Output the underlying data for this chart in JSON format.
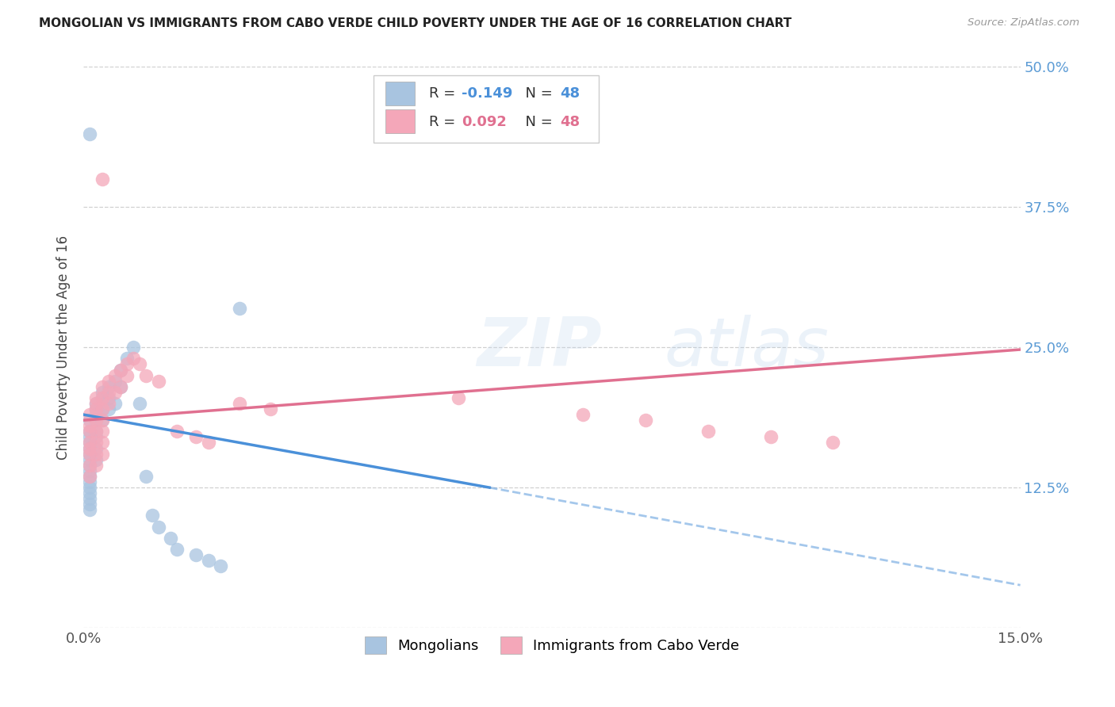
{
  "title": "MONGOLIAN VS IMMIGRANTS FROM CABO VERDE CHILD POVERTY UNDER THE AGE OF 16 CORRELATION CHART",
  "source": "Source: ZipAtlas.com",
  "ylabel": "Child Poverty Under the Age of 16",
  "xlim": [
    0.0,
    0.15
  ],
  "ylim": [
    0.0,
    0.5
  ],
  "xtick_positions": [
    0.0,
    0.05,
    0.1,
    0.15
  ],
  "xticklabels": [
    "0.0%",
    "",
    "",
    "15.0%"
  ],
  "ytick_positions": [
    0.0,
    0.125,
    0.25,
    0.375,
    0.5
  ],
  "yticklabels_right": [
    "",
    "12.5%",
    "25.0%",
    "37.5%",
    "50.0%"
  ],
  "legend_r_mongolian": "-0.149",
  "legend_n_mongolian": "48",
  "legend_r_caboverde": "0.092",
  "legend_n_caboverde": "48",
  "mongolian_color": "#a8c4e0",
  "caboverde_color": "#f4a7b9",
  "mongolian_line_color": "#4a90d9",
  "caboverde_line_color": "#e07090",
  "tick_label_color": "#5b9bd5",
  "grid_color": "#d0d0d0",
  "background_color": "#ffffff",
  "watermark": "ZIPatlas",
  "mon_x": [
    0.001,
    0.001,
    0.001,
    0.001,
    0.001,
    0.001,
    0.001,
    0.001,
    0.001,
    0.001,
    0.001,
    0.001,
    0.001,
    0.001,
    0.001,
    0.001,
    0.002,
    0.002,
    0.002,
    0.002,
    0.002,
    0.002,
    0.002,
    0.002,
    0.003,
    0.003,
    0.003,
    0.003,
    0.004,
    0.004,
    0.004,
    0.005,
    0.005,
    0.006,
    0.006,
    0.007,
    0.008,
    0.009,
    0.01,
    0.011,
    0.012,
    0.014,
    0.015,
    0.018,
    0.02,
    0.022,
    0.025,
    0.001
  ],
  "mon_y": [
    0.185,
    0.175,
    0.17,
    0.165,
    0.16,
    0.155,
    0.15,
    0.145,
    0.14,
    0.135,
    0.13,
    0.125,
    0.12,
    0.115,
    0.11,
    0.105,
    0.2,
    0.195,
    0.19,
    0.185,
    0.175,
    0.17,
    0.16,
    0.15,
    0.21,
    0.205,
    0.195,
    0.185,
    0.215,
    0.205,
    0.195,
    0.22,
    0.2,
    0.23,
    0.215,
    0.24,
    0.25,
    0.2,
    0.135,
    0.1,
    0.09,
    0.08,
    0.07,
    0.065,
    0.06,
    0.055,
    0.285,
    0.44
  ],
  "cv_x": [
    0.001,
    0.001,
    0.001,
    0.001,
    0.001,
    0.001,
    0.001,
    0.001,
    0.002,
    0.002,
    0.002,
    0.002,
    0.002,
    0.002,
    0.002,
    0.002,
    0.003,
    0.003,
    0.003,
    0.003,
    0.003,
    0.003,
    0.003,
    0.004,
    0.004,
    0.004,
    0.005,
    0.005,
    0.006,
    0.006,
    0.007,
    0.007,
    0.008,
    0.009,
    0.01,
    0.012,
    0.015,
    0.018,
    0.02,
    0.025,
    0.03,
    0.06,
    0.08,
    0.09,
    0.1,
    0.11,
    0.12,
    0.003
  ],
  "cv_y": [
    0.19,
    0.18,
    0.175,
    0.165,
    0.16,
    0.155,
    0.145,
    0.135,
    0.205,
    0.2,
    0.195,
    0.185,
    0.175,
    0.165,
    0.155,
    0.145,
    0.215,
    0.205,
    0.195,
    0.185,
    0.175,
    0.165,
    0.155,
    0.22,
    0.21,
    0.2,
    0.225,
    0.21,
    0.23,
    0.215,
    0.235,
    0.225,
    0.24,
    0.235,
    0.225,
    0.22,
    0.175,
    0.17,
    0.165,
    0.2,
    0.195,
    0.205,
    0.19,
    0.185,
    0.175,
    0.17,
    0.165,
    0.4
  ],
  "mon_line_x0": 0.0,
  "mon_line_y0": 0.19,
  "mon_line_x1_solid": 0.065,
  "mon_line_y1_solid": 0.125,
  "mon_line_x2_dash": 0.15,
  "mon_line_y2_dash": 0.038,
  "cv_line_x0": 0.0,
  "cv_line_y0": 0.185,
  "cv_line_x1": 0.15,
  "cv_line_y1": 0.248
}
